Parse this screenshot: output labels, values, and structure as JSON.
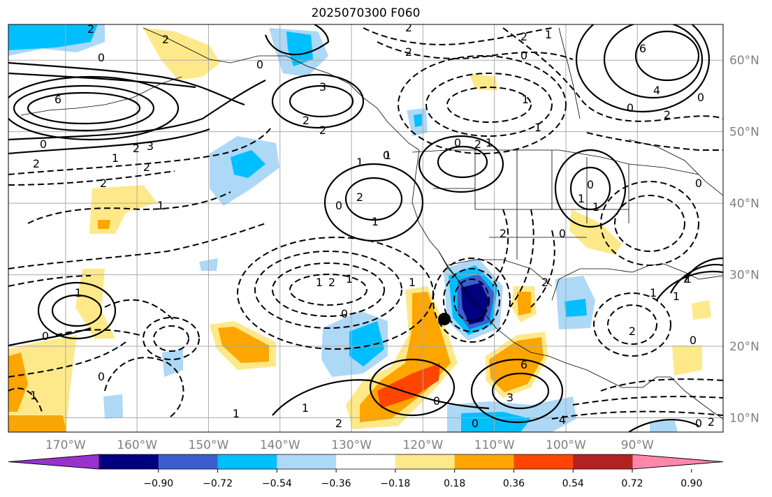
{
  "title": "2025070300 F060",
  "map": {
    "lon_labels": [
      "170°W",
      "160°W",
      "150°W",
      "140°W",
      "130°W",
      "120°W",
      "110°W",
      "100°W",
      "90°W"
    ],
    "lat_labels": [
      "60°N",
      "50°N",
      "40°N",
      "30°N",
      "20°N",
      "10°N"
    ],
    "lon_values": [
      -170,
      -160,
      -150,
      -140,
      -130,
      -120,
      -110,
      -100,
      -90
    ],
    "lat_values": [
      60,
      50,
      40,
      30,
      20,
      10
    ],
    "extent": {
      "lon": [
        -178,
        -78
      ],
      "lat": [
        8,
        65
      ]
    },
    "marker": {
      "name": "storm-center",
      "lon": -117,
      "lat": 23.8
    },
    "contour_labels": [
      "2",
      "2",
      "2",
      "0",
      "0",
      "2",
      "2",
      "1",
      "0",
      "6",
      "3",
      "6",
      "4",
      "0",
      "2",
      "3",
      "2",
      "1",
      "2",
      "2",
      "2",
      "0",
      "1",
      "2",
      "0",
      "2",
      "1",
      "1",
      "1",
      "0",
      "1",
      "2",
      "1",
      "0",
      "2",
      "1",
      "1",
      "0",
      "0",
      "0",
      "0",
      "2",
      "1",
      "1",
      "1",
      "2",
      "0",
      "1",
      "0",
      "0",
      "1",
      "1",
      "2",
      "0",
      "1",
      "6",
      "3",
      "4",
      "0",
      "0",
      "2",
      "1",
      "1",
      "2",
      "0",
      "1",
      "1",
      "2"
    ]
  },
  "colorbar": {
    "tick_labels": [
      "−0.90",
      "−0.72",
      "−0.54",
      "−0.36",
      "−0.18",
      "0.18",
      "0.36",
      "0.54",
      "0.72",
      "0.90"
    ],
    "colors": [
      "#9932cc",
      "#000080",
      "#3a5fcd",
      "#00bfff",
      "#add8f6",
      "#ffffff",
      "#fee98a",
      "#ffa500",
      "#ff4500",
      "#b22222",
      "#ff88aa"
    ],
    "bounds": [
      -0.9,
      -0.72,
      -0.54,
      -0.36,
      -0.18,
      0.18,
      0.36,
      0.54,
      0.72,
      0.9
    ]
  }
}
